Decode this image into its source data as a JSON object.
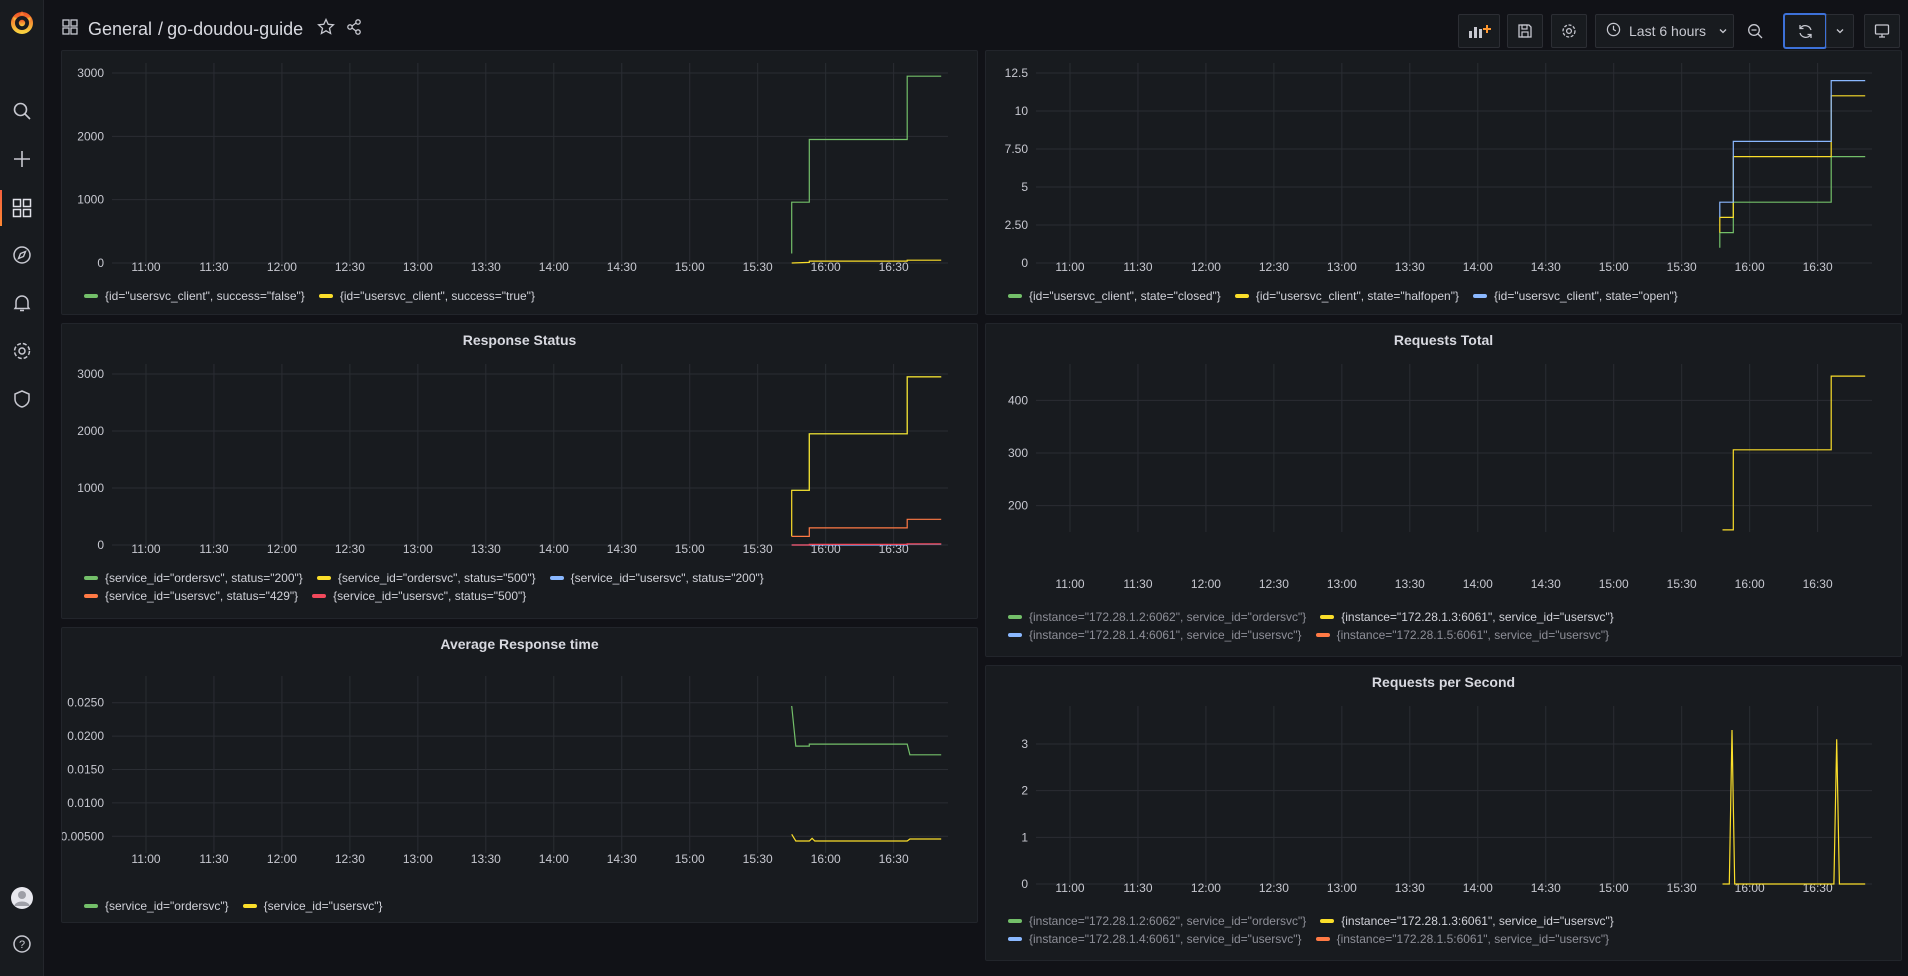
{
  "header": {
    "folder": "General",
    "separator": "/",
    "dashboard": "go-doudou-guide",
    "time_range": "Last 6 hours"
  },
  "sidebar": {
    "items": [
      "search-icon",
      "plus-icon",
      "dashboards-icon",
      "explore-icon",
      "alerting-icon",
      "configuration-icon",
      "shield-icon"
    ]
  },
  "colors": {
    "green": "#73bf69",
    "yellow": "#fade2a",
    "blue": "#8ab8ff",
    "orange": "#ff7a45",
    "red": "#f2495c",
    "grid": "#2a2d33"
  },
  "chart_data": [
    {
      "id": "hystrix-requests",
      "type": "line",
      "title": "",
      "x_ticks": [
        "11:00",
        "11:30",
        "12:00",
        "12:30",
        "13:00",
        "13:30",
        "14:00",
        "14:30",
        "15:00",
        "15:30",
        "16:00",
        "16:30"
      ],
      "y_ticks": [
        "0",
        "1000",
        "2000",
        "3000"
      ],
      "ylim": [
        0,
        3000
      ],
      "series": [
        {
          "name": "{id=\"usersvc_client\", success=\"false\"}",
          "color": "green",
          "points": [
            [
              15.75,
              150
            ],
            [
              15.75,
              960
            ],
            [
              15.88,
              960
            ],
            [
              15.88,
              1950
            ],
            [
              16.6,
              1950
            ],
            [
              16.6,
              2950
            ],
            [
              16.85,
              2950
            ]
          ]
        },
        {
          "name": "{id=\"usersvc_client\", success=\"true\"}",
          "color": "yellow",
          "points": [
            [
              15.75,
              0
            ],
            [
              15.88,
              10
            ],
            [
              15.88,
              30
            ],
            [
              16.6,
              30
            ],
            [
              16.6,
              45
            ],
            [
              16.85,
              45
            ]
          ]
        }
      ]
    },
    {
      "id": "circuit-state",
      "type": "line",
      "title": "",
      "x_ticks": [
        "11:00",
        "11:30",
        "12:00",
        "12:30",
        "13:00",
        "13:30",
        "14:00",
        "14:30",
        "15:00",
        "15:30",
        "16:00",
        "16:30"
      ],
      "y_ticks": [
        "0",
        "2.50",
        "5",
        "7.50",
        "10",
        "12.5"
      ],
      "ylim": [
        0,
        12.5
      ],
      "series": [
        {
          "name": "{id=\"usersvc_client\", state=\"closed\"}",
          "color": "green",
          "points": [
            [
              15.78,
              1
            ],
            [
              15.78,
              2
            ],
            [
              15.88,
              2
            ],
            [
              15.88,
              4
            ],
            [
              16.6,
              4
            ],
            [
              16.6,
              7
            ],
            [
              16.85,
              7
            ]
          ]
        },
        {
          "name": "{id=\"usersvc_client\", state=\"halfopen\"}",
          "color": "yellow",
          "points": [
            [
              15.78,
              2
            ],
            [
              15.78,
              3
            ],
            [
              15.88,
              3
            ],
            [
              15.88,
              7
            ],
            [
              16.6,
              7
            ],
            [
              16.6,
              11
            ],
            [
              16.85,
              11
            ]
          ]
        },
        {
          "name": "{id=\"usersvc_client\", state=\"open\"}",
          "color": "blue",
          "points": [
            [
              15.78,
              3
            ],
            [
              15.78,
              4
            ],
            [
              15.88,
              4
            ],
            [
              15.88,
              8
            ],
            [
              16.6,
              8
            ],
            [
              16.6,
              12
            ],
            [
              16.85,
              12
            ]
          ]
        }
      ]
    },
    {
      "id": "response-status",
      "type": "line",
      "title": "Response Status",
      "x_ticks": [
        "11:00",
        "11:30",
        "12:00",
        "12:30",
        "13:00",
        "13:30",
        "14:00",
        "14:30",
        "15:00",
        "15:30",
        "16:00",
        "16:30"
      ],
      "y_ticks": [
        "0",
        "1000",
        "2000",
        "3000"
      ],
      "ylim": [
        0,
        3000
      ],
      "series": [
        {
          "name": "{service_id=\"ordersvc\", status=\"200\"}",
          "color": "green",
          "points": [
            [
              15.75,
              960
            ],
            [
              15.88,
              960
            ],
            [
              15.88,
              1950
            ],
            [
              16.6,
              1950
            ],
            [
              16.6,
              2950
            ],
            [
              16.85,
              2950
            ]
          ]
        },
        {
          "name": "{service_id=\"ordersvc\", status=\"500\"}",
          "color": "yellow",
          "points": [
            [
              15.75,
              150
            ],
            [
              15.75,
              960
            ],
            [
              15.88,
              960
            ],
            [
              15.88,
              1950
            ],
            [
              16.6,
              1950
            ],
            [
              16.6,
              2950
            ],
            [
              16.85,
              2950
            ]
          ]
        },
        {
          "name": "{service_id=\"usersvc\", status=\"200\"}",
          "color": "blue",
          "points": [
            [
              15.75,
              0
            ],
            [
              16.6,
              0
            ],
            [
              16.6,
              15
            ],
            [
              16.85,
              15
            ]
          ]
        },
        {
          "name": "{service_id=\"usersvc\", status=\"429\"}",
          "color": "orange",
          "points": [
            [
              15.75,
              150
            ],
            [
              15.88,
              150
            ],
            [
              15.88,
              300
            ],
            [
              16.6,
              300
            ],
            [
              16.6,
              450
            ],
            [
              16.85,
              450
            ]
          ]
        },
        {
          "name": "{service_id=\"usersvc\", status=\"500\"}",
          "color": "red",
          "points": [
            [
              15.75,
              0
            ],
            [
              15.88,
              0
            ],
            [
              15.88,
              10
            ],
            [
              16.6,
              10
            ],
            [
              16.6,
              20
            ],
            [
              16.85,
              20
            ]
          ]
        }
      ]
    },
    {
      "id": "requests-total",
      "type": "line",
      "title": "Requests Total",
      "x_ticks": [
        "11:00",
        "11:30",
        "12:00",
        "12:30",
        "13:00",
        "13:30",
        "14:00",
        "14:30",
        "15:00",
        "15:30",
        "16:00",
        "16:30"
      ],
      "y_ticks": [
        "200",
        "300",
        "400"
      ],
      "ylim": [
        150,
        450
      ],
      "series": [
        {
          "name": "{instance=\"172.28.1.2:6062\", service_id=\"ordersvc\"}",
          "color": "green",
          "dim": true,
          "points": []
        },
        {
          "name": "{instance=\"172.28.1.3:6061\", service_id=\"usersvc\"}",
          "color": "yellow",
          "dim": false,
          "points": [
            [
              15.8,
              154
            ],
            [
              15.88,
              154
            ],
            [
              15.88,
              306
            ],
            [
              16.6,
              306
            ],
            [
              16.6,
              446
            ],
            [
              16.85,
              446
            ]
          ]
        },
        {
          "name": "{instance=\"172.28.1.4:6061\", service_id=\"usersvc\"}",
          "color": "blue",
          "dim": true,
          "points": []
        },
        {
          "name": "{instance=\"172.28.1.5:6061\", service_id=\"usersvc\"}",
          "color": "orange",
          "dim": true,
          "points": []
        }
      ]
    },
    {
      "id": "avg-response-time",
      "type": "line",
      "title": "Average Response time",
      "x_ticks": [
        "11:00",
        "11:30",
        "12:00",
        "12:30",
        "13:00",
        "13:30",
        "14:00",
        "14:30",
        "15:00",
        "15:30",
        "16:00",
        "16:30"
      ],
      "y_ticks": [
        "0.00500",
        "0.0100",
        "0.0150",
        "0.0200",
        "0.0250"
      ],
      "ylim": [
        0.0025,
        0.0275
      ],
      "series": [
        {
          "name": "{service_id=\"ordersvc\"}",
          "color": "green",
          "points": [
            [
              15.75,
              0.0245
            ],
            [
              15.78,
              0.0185
            ],
            [
              15.88,
              0.0185
            ],
            [
              15.88,
              0.0188
            ],
            [
              16.6,
              0.0188
            ],
            [
              16.62,
              0.0172
            ],
            [
              16.85,
              0.0172
            ]
          ]
        },
        {
          "name": "{service_id=\"usersvc\"}",
          "color": "yellow",
          "points": [
            [
              15.75,
              0.0053
            ],
            [
              15.78,
              0.0043
            ],
            [
              15.88,
              0.0043
            ],
            [
              15.9,
              0.0047
            ],
            [
              15.92,
              0.0043
            ],
            [
              16.6,
              0.0043
            ],
            [
              16.62,
              0.0046
            ],
            [
              16.85,
              0.0046
            ]
          ]
        }
      ]
    },
    {
      "id": "requests-per-second",
      "type": "line",
      "title": "Requests per Second",
      "x_ticks": [
        "11:00",
        "11:30",
        "12:00",
        "12:30",
        "13:00",
        "13:30",
        "14:00",
        "14:30",
        "15:00",
        "15:30",
        "16:00",
        "16:30"
      ],
      "y_ticks": [
        "0",
        "1",
        "2",
        "3"
      ],
      "ylim": [
        0,
        3.6
      ],
      "series": [
        {
          "name": "{instance=\"172.28.1.2:6062\", service_id=\"ordersvc\"}",
          "color": "green",
          "dim": true,
          "points": []
        },
        {
          "name": "{instance=\"172.28.1.3:6061\", service_id=\"usersvc\"}",
          "color": "yellow",
          "dim": false,
          "points": [
            [
              15.8,
              0
            ],
            [
              15.85,
              0
            ],
            [
              15.87,
              3.3
            ],
            [
              15.89,
              0
            ],
            [
              16.62,
              0
            ],
            [
              16.64,
              3.1
            ],
            [
              16.66,
              0
            ],
            [
              16.85,
              0
            ]
          ]
        },
        {
          "name": "{instance=\"172.28.1.4:6061\", service_id=\"usersvc\"}",
          "color": "blue",
          "dim": true,
          "points": []
        },
        {
          "name": "{instance=\"172.28.1.5:6061\", service_id=\"usersvc\"}",
          "color": "orange",
          "dim": true,
          "points": []
        }
      ]
    }
  ]
}
